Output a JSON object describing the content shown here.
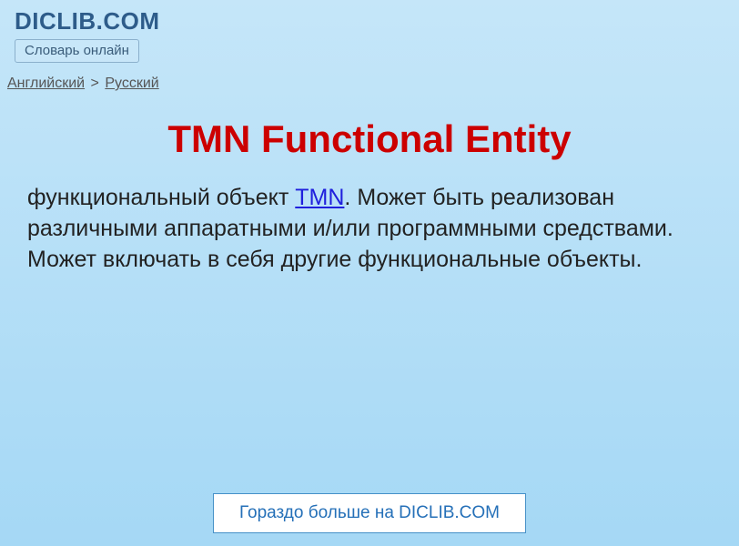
{
  "header": {
    "site_title": "DICLIB.COM",
    "subtitle": "Словарь онлайн"
  },
  "breadcrumb": {
    "lang_from": "Английский",
    "separator": ">",
    "lang_to": "Русский"
  },
  "main": {
    "title": "TMN Functional Entity",
    "definition_prefix": "функциональный объект ",
    "definition_link_text": "TMN",
    "definition_suffix": ". Может быть реализован различными аппаратными и/или программными средствами. Может включать в себя другие функциональные объекты."
  },
  "footer": {
    "more_text": "Гораздо больше на DICLIB.COM"
  },
  "colors": {
    "title_color": "#cc0000",
    "site_title_color": "#2e5c8a",
    "link_color": "#2020dd",
    "breadcrumb_color": "#555555",
    "body_text_color": "#222222",
    "footer_text_color": "#2570b8",
    "footer_border": "#4590c8",
    "bg_top": "#c5e6f9",
    "bg_bottom": "#a5d8f5"
  },
  "typography": {
    "site_title_size": 26,
    "subtitle_size": 15,
    "breadcrumb_size": 16,
    "main_title_size": 42,
    "body_size": 25,
    "footer_size": 19
  }
}
